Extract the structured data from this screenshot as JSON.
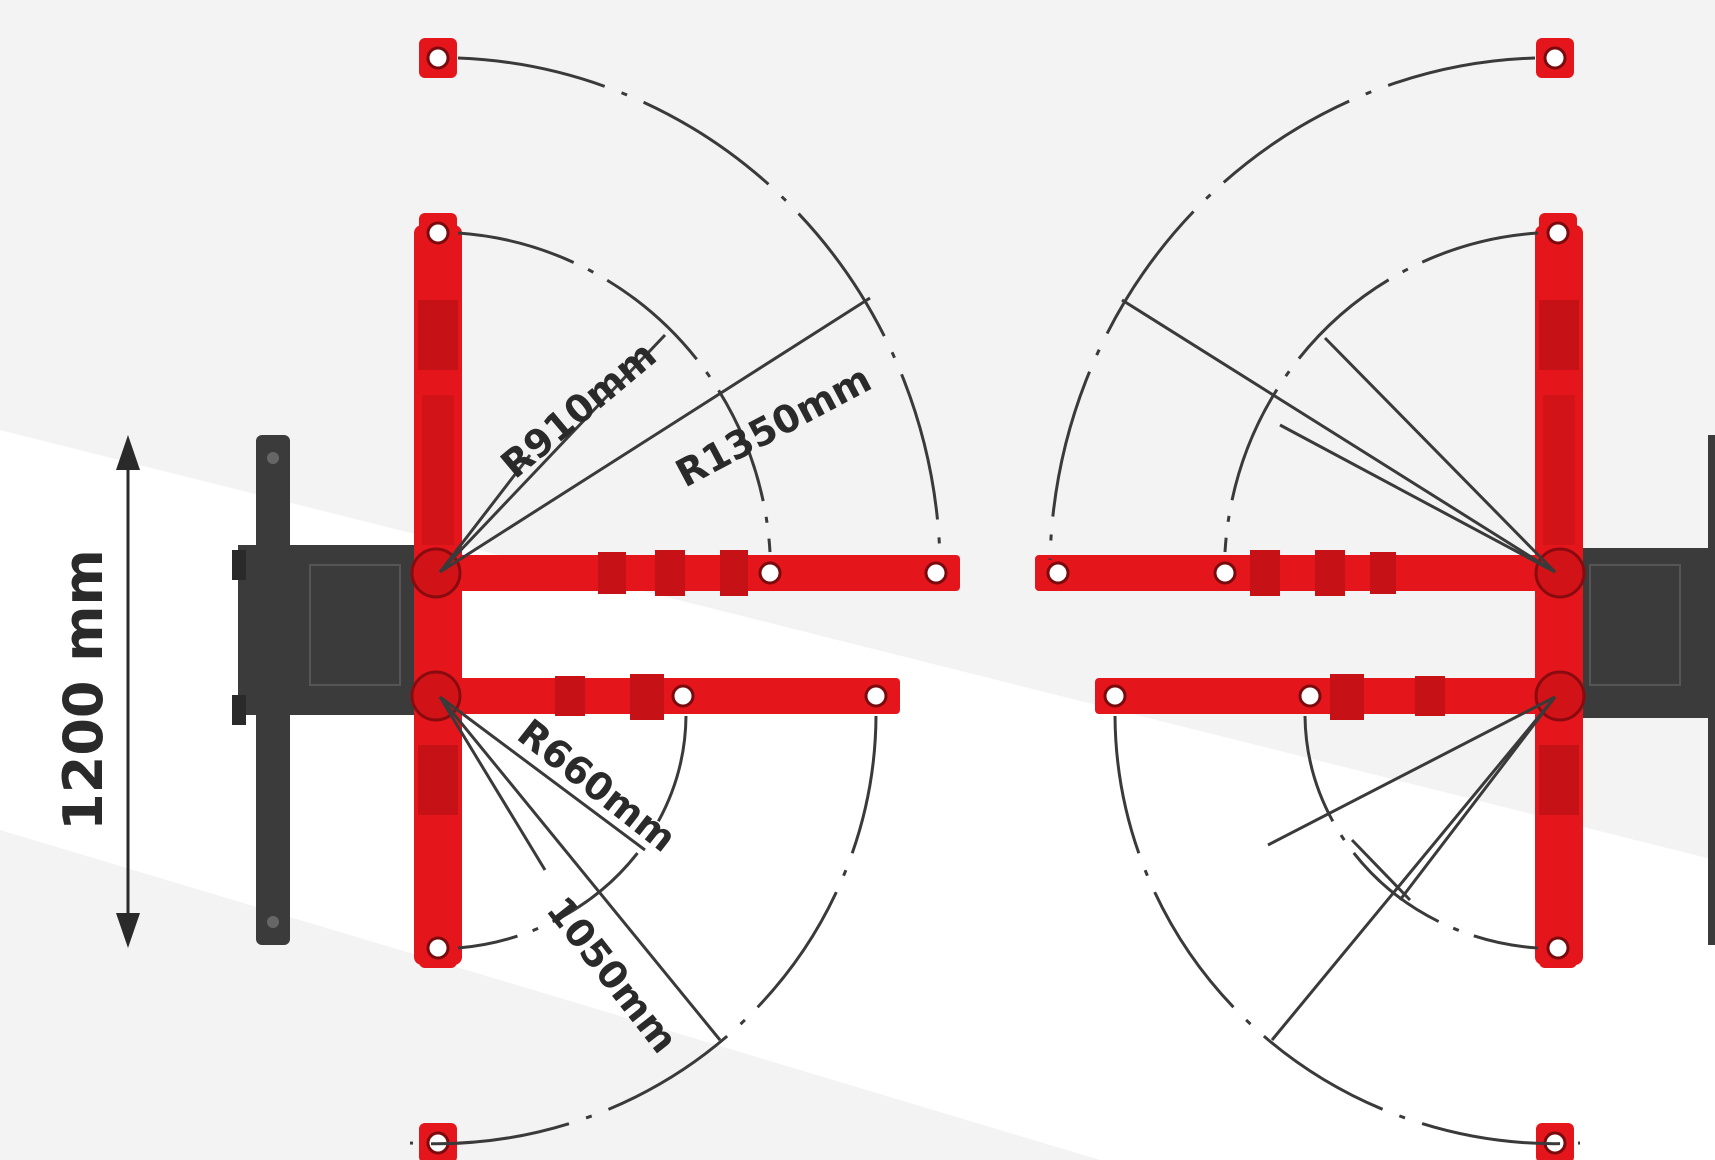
{
  "dimensions": {
    "overall_width": "1200 mm",
    "radius_front_outer": "R1350mm",
    "radius_front_inner": "R910mm",
    "radius_rear_inner": "R660mm",
    "radius_rear_outer": "1050mm"
  },
  "colors": {
    "arm": "#e4161c",
    "arm_dark": "#b30f14",
    "column": "#3b3b3b",
    "line": "#3a3a3a",
    "background": "#f3f3f3",
    "highlight": "#ffffff"
  }
}
